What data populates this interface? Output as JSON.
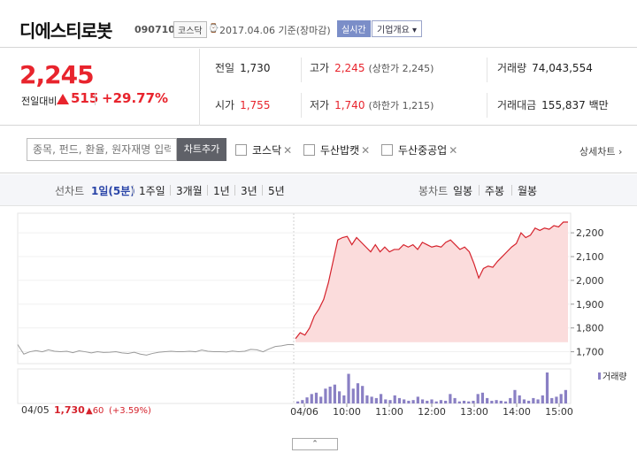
{
  "header": {
    "name": "디에스티로봇",
    "code": "090710",
    "market": "코스닥",
    "date": "2017.04.06 기준(장마감)",
    "realtime_label": "실시간",
    "company_info_label": "기업개요 ▾"
  },
  "quote": {
    "price": "2,245",
    "change_label": "전일대비",
    "change": "515",
    "change_rate": "+29.77%",
    "prev_close_label": "전일",
    "prev_close": "1,730",
    "high_label": "고가",
    "high": "2,245",
    "upper_limit": "(상한가 2,245)",
    "volume_label": "거래량",
    "volume": "74,043,554",
    "open_label": "시가",
    "open": "1,755",
    "low_label": "저가",
    "low": "1,740",
    "lower_limit": "(하한가 1,215)",
    "amount_label": "거래대금",
    "amount": "155,837 백만"
  },
  "search": {
    "placeholder": "종목, 펀드, 환율, 원자재명 입력",
    "add_label": "차트추가",
    "compare": [
      "코스닥",
      "두산밥캣",
      "두산중공업"
    ],
    "close_glyph": "✕",
    "detail_label": "상세차트 ›"
  },
  "tabs": {
    "line_label": "선차트",
    "line_periods": [
      "1일(5분)",
      "1주일",
      "3개월",
      "1년",
      "3년",
      "5년"
    ],
    "candle_label": "봉차트",
    "candle_periods": [
      "일봉",
      "주봉",
      "월봉"
    ]
  },
  "footer_label": "⌃",
  "chart_data": {
    "type": "line",
    "y_ticks": [
      "2,200",
      "2,100",
      "2,000",
      "1,900",
      "1,800",
      "1,700"
    ],
    "ylim": [
      1650,
      2260
    ],
    "x_ticks": [
      "04/06",
      "10:00",
      "11:00",
      "12:00",
      "13:00",
      "14:00",
      "15:00"
    ],
    "volume_label": "거래량",
    "prev_day_info": {
      "date": "04/05",
      "close": "1,730",
      "change": "▲60",
      "rate": "(+3.59%)"
    },
    "series": [
      {
        "period": "04/05",
        "values": [
          1730,
          1690,
          1700,
          1705,
          1700,
          1708,
          1702,
          1700,
          1702,
          1696,
          1704,
          1700,
          1695,
          1700,
          1697,
          1698,
          1700,
          1695,
          1693,
          1698,
          1690,
          1686,
          1693,
          1698,
          1700,
          1702,
          1700,
          1700,
          1702,
          1700,
          1707,
          1702,
          1700,
          1700,
          1699,
          1703,
          1700,
          1702,
          1710,
          1708,
          1700,
          1712,
          1722,
          1725,
          1730,
          1730
        ]
      },
      {
        "period": "04/06",
        "values": [
          1755,
          1780,
          1770,
          1800,
          1850,
          1880,
          1920,
          1990,
          2080,
          2170,
          2180,
          2185,
          2150,
          2180,
          2160,
          2140,
          2120,
          2150,
          2120,
          2140,
          2120,
          2130,
          2130,
          2150,
          2140,
          2150,
          2130,
          2160,
          2150,
          2140,
          2145,
          2140,
          2160,
          2170,
          2150,
          2130,
          2140,
          2120,
          2070,
          2010,
          2050,
          2060,
          2055,
          2080,
          2100,
          2120,
          2140,
          2155,
          2200,
          2180,
          2190,
          2220,
          2210,
          2220,
          2215,
          2230,
          2225,
          2245,
          2245
        ]
      }
    ],
    "volume": [
      3,
      5,
      9,
      14,
      16,
      10,
      22,
      25,
      28,
      18,
      12,
      44,
      22,
      30,
      26,
      12,
      10,
      8,
      14,
      6,
      5,
      12,
      8,
      6,
      4,
      5,
      10,
      6,
      4,
      6,
      3,
      5,
      4,
      14,
      8,
      3,
      4,
      3,
      4,
      14,
      16,
      8,
      4,
      5,
      4,
      3,
      8,
      20,
      12,
      6,
      4,
      8,
      6,
      12,
      46,
      8,
      10,
      14,
      20
    ]
  }
}
